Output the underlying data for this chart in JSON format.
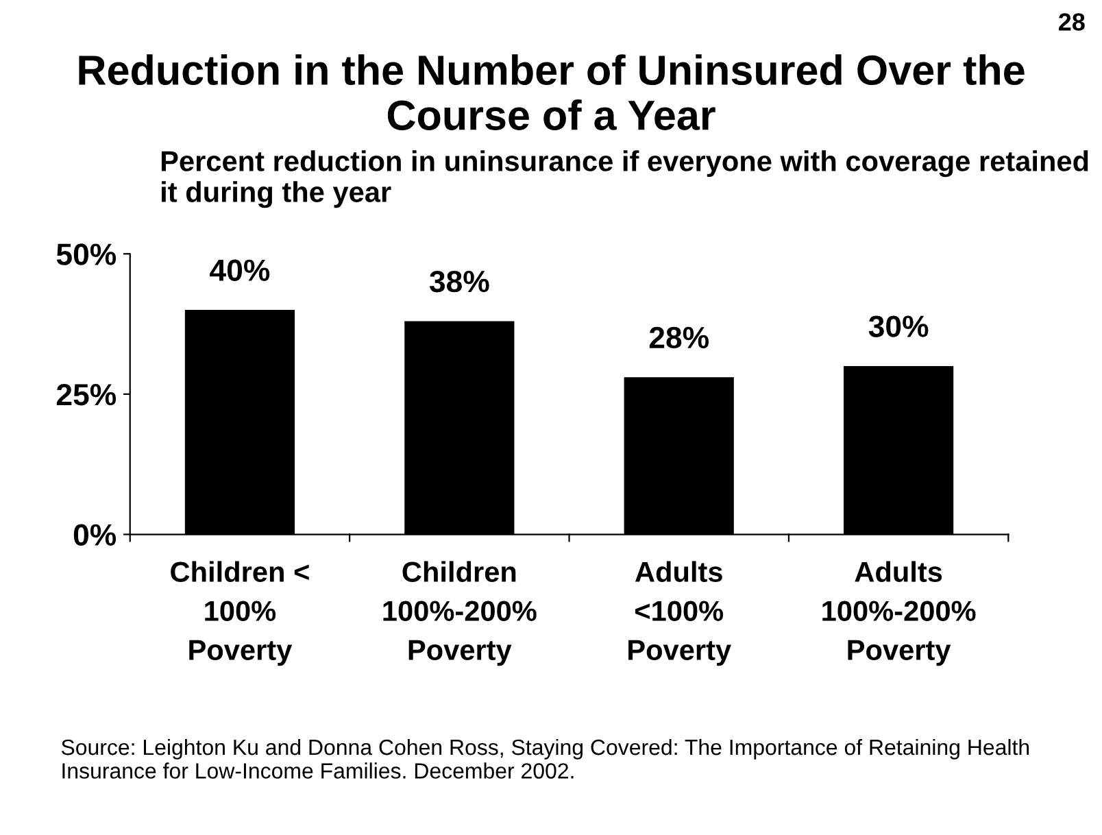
{
  "chart_data": {
    "type": "bar",
    "title": "Reduction in the Number of Uninsured Over the Course of a Year",
    "subtitle": "Percent reduction in uninsurance if everyone with coverage retained it during the year",
    "categories": [
      "Children <\n100%\nPoverty",
      "Children\n100%-200%\nPoverty",
      "Adults\n<100%\nPoverty",
      "Adults\n100%-200%\nPoverty"
    ],
    "values": [
      40,
      38,
      28,
      30
    ],
    "value_labels": [
      "40%",
      "38%",
      "28%",
      "30%"
    ],
    "color": "#000000",
    "ylim": [
      0,
      50
    ],
    "yticks": [
      {
        "value": 0,
        "label": "0%"
      },
      {
        "value": 25,
        "label": "25%"
      },
      {
        "value": 50,
        "label": "50%"
      }
    ],
    "annotations": [
      "28",
      "Source: Leighton Ku and Donna Cohen Ross, Staying Covered: The Importance of Retaining Health Insurance for Low-Income Families. December 2002."
    ]
  }
}
